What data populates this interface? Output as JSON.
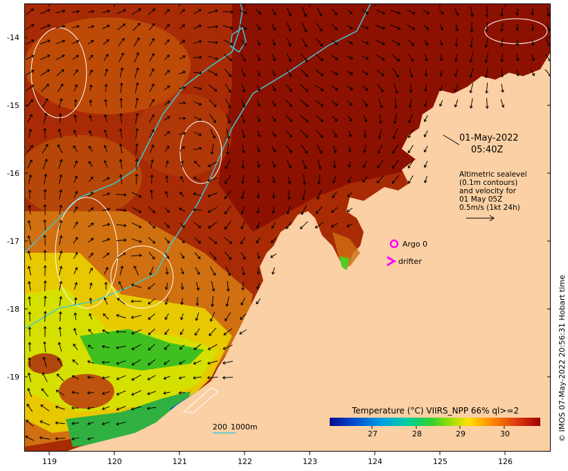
{
  "map": {
    "date": "01-May-2022",
    "time": "05:40Z",
    "altimetry_lines": [
      "Altimetric sealevel",
      "(0.1m contours)",
      "and velocity for",
      "01 May 05Z",
      "0.5m/s (1kt 24h)"
    ],
    "legend": {
      "argo_label": "Argo 0",
      "argo_color": "#ff00ff",
      "drifter_label": "drifter",
      "drifter_color": "#ff00ff"
    },
    "scale_bar": {
      "label_a": "200",
      "label_b": "1000m",
      "color": "#3fc9d6"
    },
    "colorbar": {
      "title": "Temperature (°C) VIIRS_NPP 66% ql>=2",
      "ticks": [
        "27",
        "28",
        "29",
        "30"
      ],
      "range": [
        26,
        31
      ],
      "stops": [
        "#0a0a8c",
        "#0050d0",
        "#00a0e0",
        "#00d0a0",
        "#30d030",
        "#a0e000",
        "#ffe000",
        "#ff9000",
        "#e04010",
        "#a00000"
      ]
    },
    "credit": "© IMOS 07-May-2022 20:56:31 Hobart time",
    "x_axis_ticks": [
      "119",
      "120",
      "121",
      "122",
      "123",
      "124",
      "125",
      "126"
    ],
    "y_axis_ticks": [
      "-14",
      "-15",
      "-16",
      "-17",
      "-18",
      "-19"
    ],
    "colors": {
      "land": "#fbd0a4",
      "ocean_warm": "#a82b06",
      "ocean_dark": "#8d1100",
      "ocean_orange": "#d8700a",
      "ocean_yellow": "#e8e000",
      "ocean_green": "#50cc20",
      "isobath": "#3fc9d6",
      "contour": "#ffffff"
    }
  }
}
